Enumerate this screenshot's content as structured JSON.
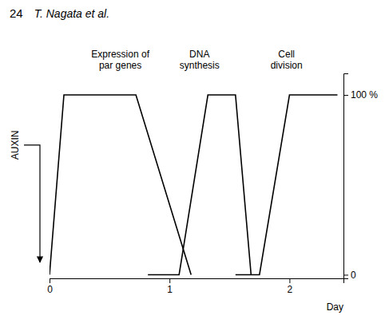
{
  "chart_data": {
    "type": "line",
    "title": "24",
    "subtitle": "T. Nagata et al.",
    "x_label": "Day",
    "y_label": "AUXIN",
    "color": "#000000",
    "grid": false,
    "xlim": [
      0,
      2.45
    ],
    "xticks": [
      0,
      1,
      2
    ],
    "ylim": [
      -0.02,
      1.12
    ],
    "yticks": [
      0,
      {
        "value": 1.0,
        "label": "100 %"
      }
    ],
    "series": [
      {
        "name": "Expression of\npar genes",
        "x": [
          0.0,
          0.12,
          0.35,
          0.72,
          1.18
        ],
        "values": [
          0.0,
          1.0,
          1.0,
          1.0,
          0.0
        ]
      },
      {
        "name": "DNA\nsynthesis",
        "x": [
          0.82,
          1.08,
          1.32,
          1.55,
          1.68
        ],
        "values": [
          0.0,
          0.0,
          1.0,
          1.0,
          0.0
        ]
      },
      {
        "name": "Cell\ndivision",
        "x": [
          1.55,
          1.75,
          2.0,
          2.4
        ],
        "values": [
          0.0,
          0.0,
          1.0,
          1.0
        ]
      }
    ]
  }
}
